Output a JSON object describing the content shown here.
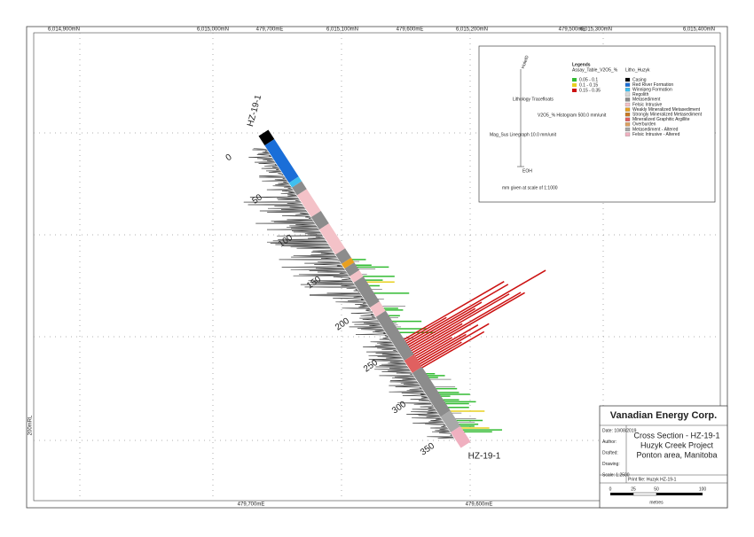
{
  "grid_labels": {
    "top": [
      "6,014,900mN",
      "6,015,000mN",
      "479,700mE",
      "6,015,100mN",
      "479,600mE",
      "6,015,200mN",
      "479,500mE",
      "6,015,300mN",
      "6,015,400mN"
    ],
    "bottom": [
      "479,700mE",
      "479,600mE"
    ],
    "left": [
      "200mRL"
    ]
  },
  "drillhole": {
    "label_top": "HZ-19-1",
    "label_bottom": "HZ-19-1",
    "depth_labels": [
      "0",
      "50",
      "100",
      "150",
      "200",
      "250",
      "300",
      "350"
    ]
  },
  "legend": {
    "title": "Legends",
    "assay_title": "Assay_Table_V2O5_%",
    "assay_items": [
      {
        "label": "0.05 - 0.1",
        "color": "#33bb33"
      },
      {
        "label": "0.1 - 0.15",
        "color": "#e8d020"
      },
      {
        "label": "0.15 - 0.35",
        "color": "#cc1111"
      }
    ],
    "litho_title": "Litho_Huzyk",
    "litho_items": [
      {
        "label": "Casing",
        "color": "#000000"
      },
      {
        "label": "Red River Formation",
        "color": "#1a6ed8"
      },
      {
        "label": "Winnipeg Formation",
        "color": "#3fbfef"
      },
      {
        "label": "Regolith",
        "color": "#d8d8d8"
      },
      {
        "label": "Metasediment",
        "color": "#8c8c8c"
      },
      {
        "label": "Felsic Intrusive",
        "color": "#f4c2c8"
      },
      {
        "label": "Weakly Mineralized Metasediment",
        "color": "#e8a020"
      },
      {
        "label": "Strongly Mineralized Metasediment",
        "color": "#c87820"
      },
      {
        "label": "Mineralized Graphitic Argillite",
        "color": "#e06060"
      },
      {
        "label": "Overburden",
        "color": "#dca060"
      },
      {
        "label": "Metasediment - Altered",
        "color": "#a8a8a8"
      },
      {
        "label": "Felsic Intrusive - Altered",
        "color": "#f0b0c0"
      }
    ],
    "trace_hole": "HoleID",
    "trace_litho": "Lithology Tracefloats",
    "trace_v2o5": "V2O5_% Histogram 500.0 mm/unit",
    "trace_mag": "Mag_Sus Linegraph 10.0 mm/unit",
    "eoh": "EOH",
    "scale_note": "mm given at scale of 1:1000"
  },
  "title_block": {
    "company": "Vanadian Energy Corp.",
    "title": "Cross Section - HZ-19-1",
    "project": "Huzyk Creek Project",
    "area": "Ponton area, Manitoba",
    "fields": [
      "Date: 10/08/2019",
      "Author:",
      "Drafted:",
      "Drawing:",
      "Scale: 1:2500"
    ],
    "print_file": "Print file: Huzyk HZ-19-1",
    "scale_ticks": [
      "0",
      "25",
      "50",
      "100"
    ],
    "scale_unit": "metres"
  }
}
